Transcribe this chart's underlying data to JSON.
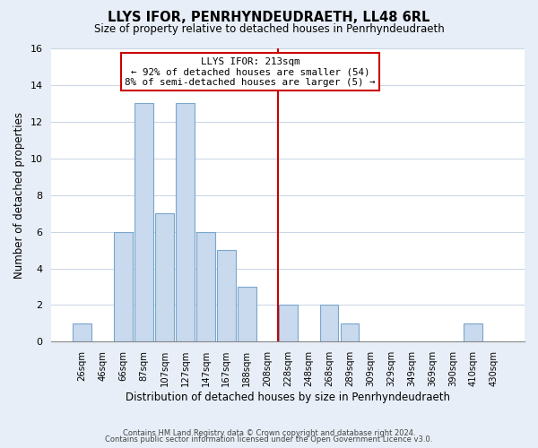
{
  "title": "LLYS IFOR, PENRHYNDEUDRAETH, LL48 6RL",
  "subtitle": "Size of property relative to detached houses in Penrhyndeudraeth",
  "xlabel": "Distribution of detached houses by size in Penrhyndeudraeth",
  "ylabel": "Number of detached properties",
  "bar_labels": [
    "26sqm",
    "46sqm",
    "66sqm",
    "87sqm",
    "107sqm",
    "127sqm",
    "147sqm",
    "167sqm",
    "188sqm",
    "208sqm",
    "228sqm",
    "248sqm",
    "268sqm",
    "289sqm",
    "309sqm",
    "329sqm",
    "349sqm",
    "369sqm",
    "390sqm",
    "410sqm",
    "430sqm"
  ],
  "bar_heights": [
    1,
    0,
    6,
    13,
    7,
    13,
    6,
    5,
    3,
    0,
    2,
    0,
    2,
    1,
    0,
    0,
    0,
    0,
    0,
    1,
    0
  ],
  "bar_color": "#c9d9ee",
  "bar_edge_color": "#7aa6cc",
  "ylim": [
    0,
    16
  ],
  "yticks": [
    0,
    2,
    4,
    6,
    8,
    10,
    12,
    14,
    16
  ],
  "vline_x_index": 9.5,
  "vline_color": "#cc0000",
  "annotation_title": "LLYS IFOR: 213sqm",
  "annotation_line1": "← 92% of detached houses are smaller (54)",
  "annotation_line2": "8% of semi-detached houses are larger (5) →",
  "footer_line1": "Contains HM Land Registry data © Crown copyright and database right 2024.",
  "footer_line2": "Contains public sector information licensed under the Open Government Licence v3.0.",
  "background_color": "#e8eef7",
  "plot_background": "#ffffff",
  "grid_color": "#c8d4e4"
}
